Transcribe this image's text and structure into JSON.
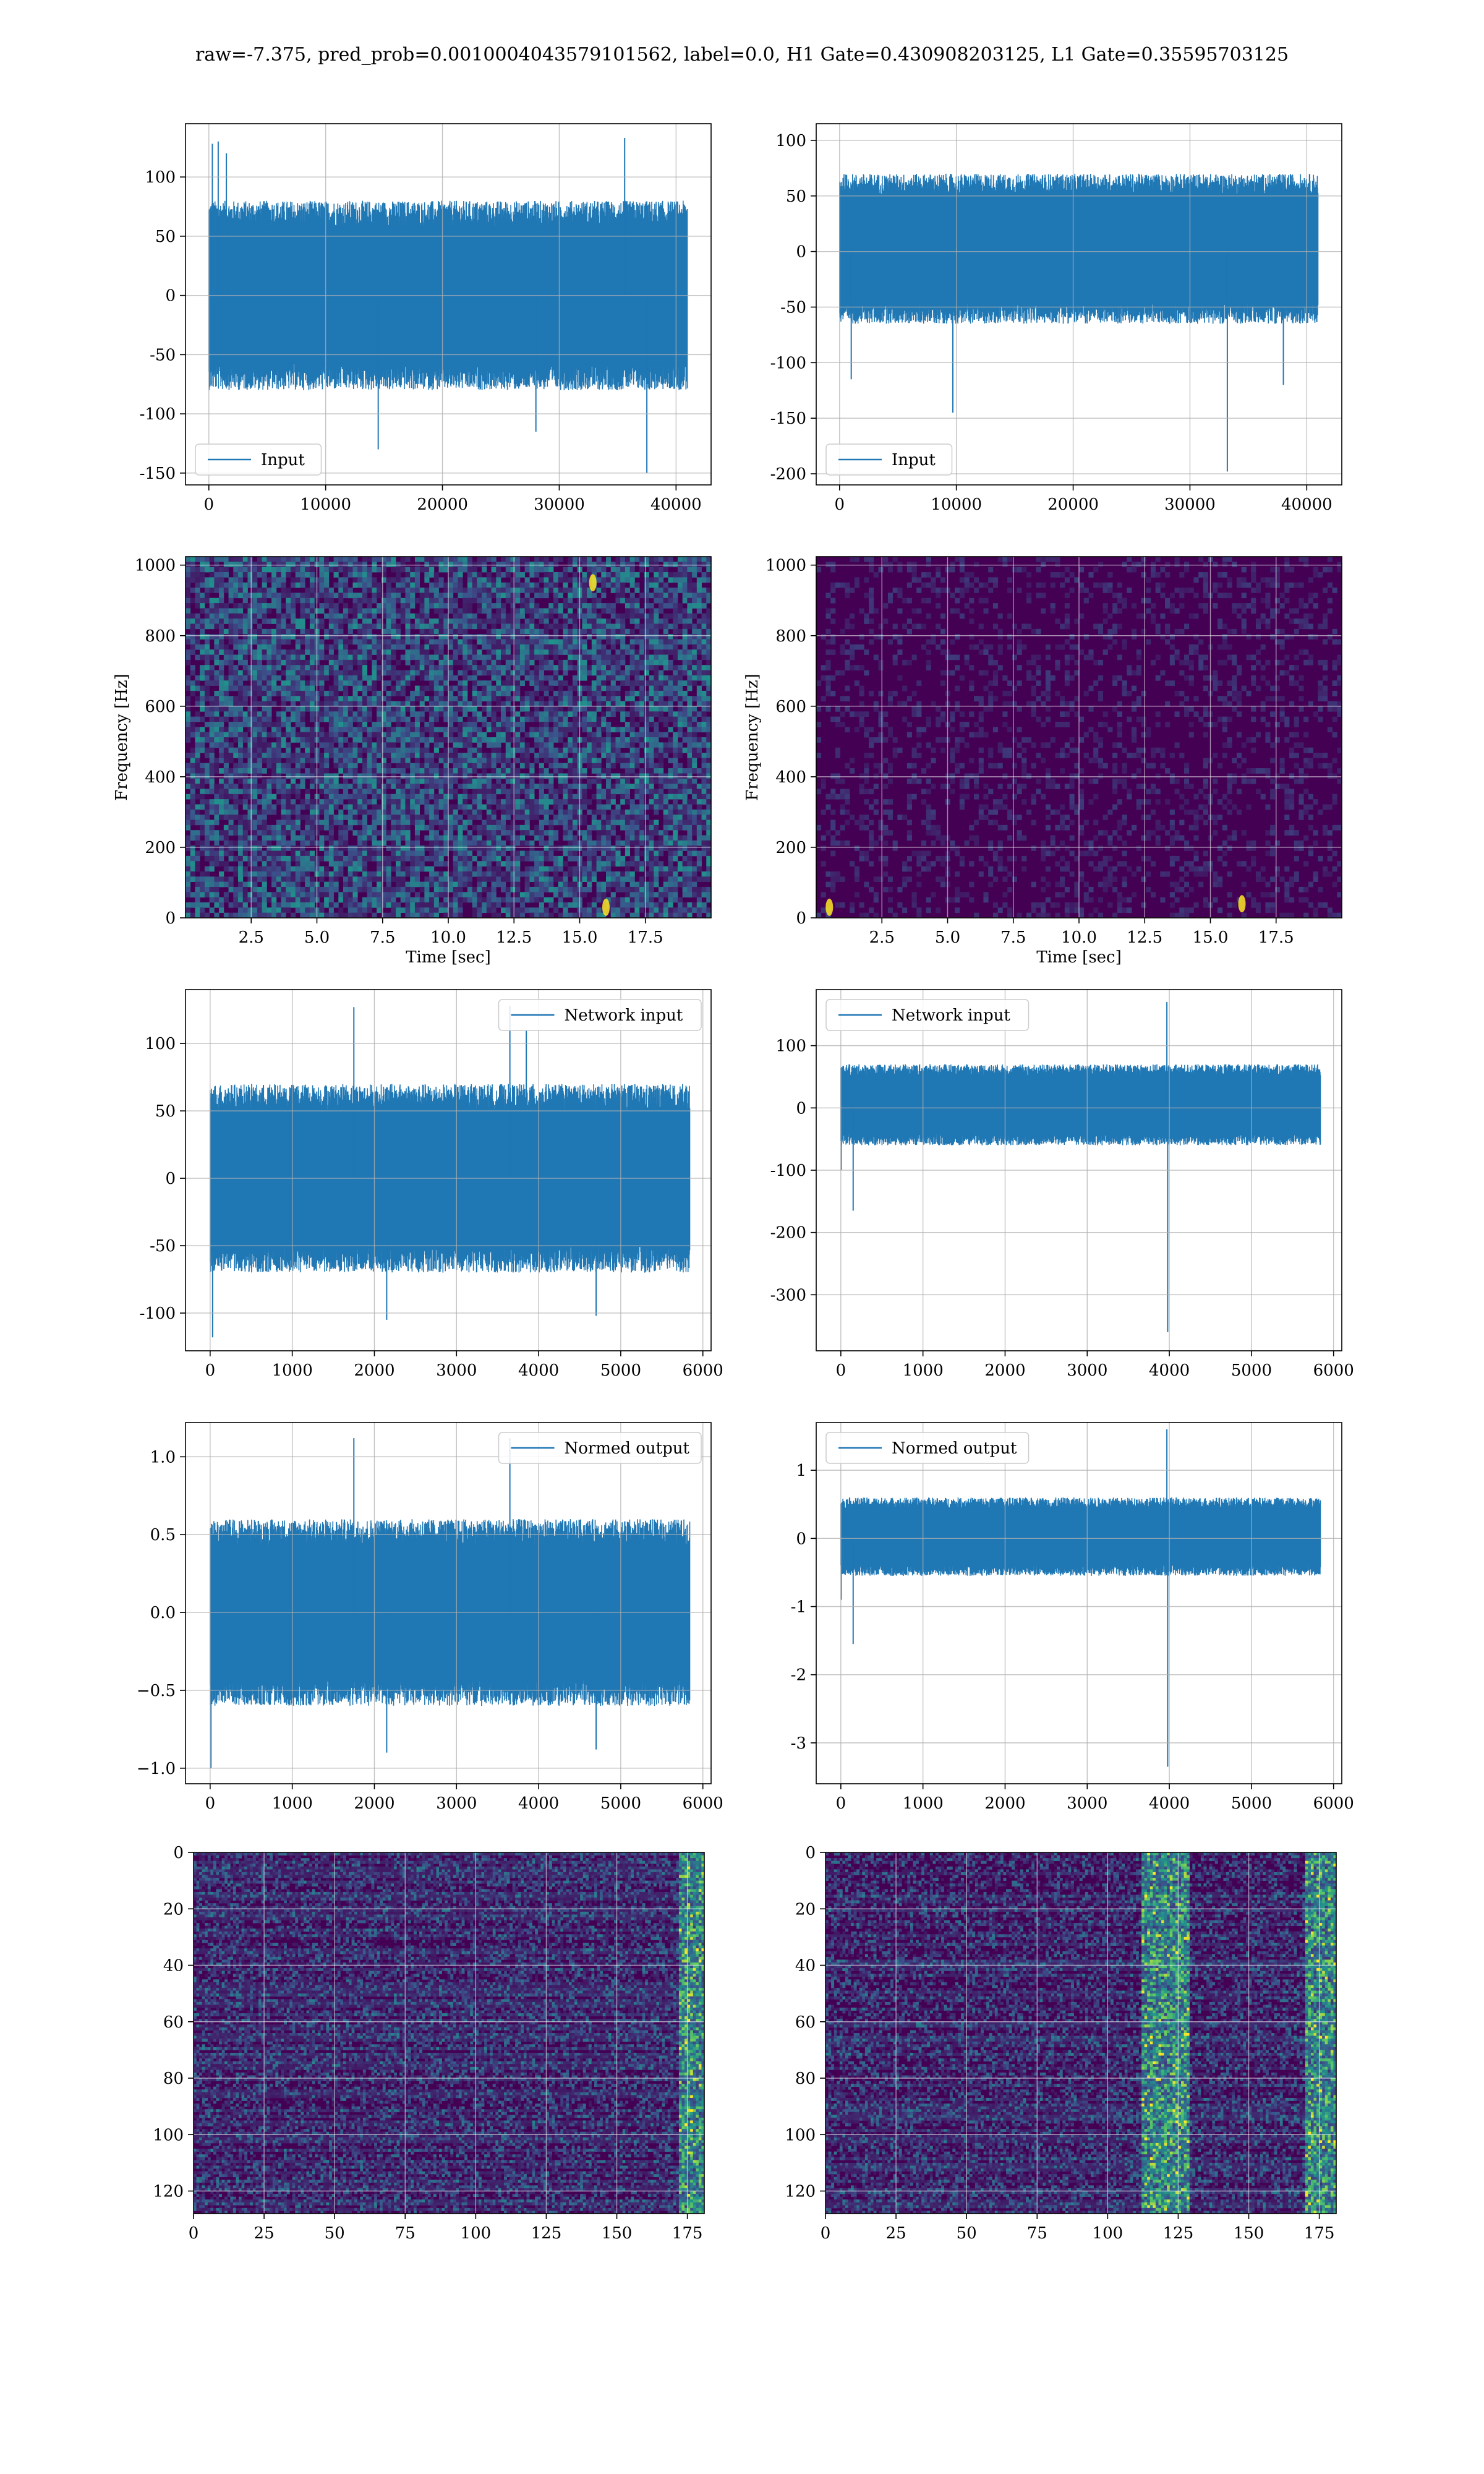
{
  "figure": {
    "suptitle": "raw=-7.375, pred_prob=0.0010004043579101562, label=0.0, H1 Gate=0.430908203125, L1 Gate=0.35595703125"
  },
  "colors": {
    "series": "#1f77b4",
    "grid": "#b0b0b0",
    "viridis_low": "#440154",
    "viridis_high": "#fde725"
  },
  "chart_data": [
    {
      "id": "h1-input",
      "type": "line",
      "legend": "Input",
      "legend_position": "lower left",
      "xlim": [
        -2000,
        43000
      ],
      "ylim": [
        -160,
        145
      ],
      "xticks": [
        0,
        10000,
        20000,
        30000,
        40000
      ],
      "yticks": [
        -150,
        -100,
        -50,
        0,
        50,
        100
      ],
      "n_points": 40960,
      "envelope": [
        -80,
        80
      ],
      "spikes": [
        [
          300,
          128
        ],
        [
          800,
          130
        ],
        [
          1500,
          120
        ],
        [
          14500,
          -130
        ],
        [
          37500,
          -150
        ],
        [
          35600,
          133
        ],
        [
          28000,
          -115
        ]
      ],
      "xlabel": "",
      "ylabel": "",
      "grid": true
    },
    {
      "id": "l1-input",
      "type": "line",
      "legend": "Input",
      "legend_position": "lower left",
      "xlim": [
        -2000,
        43000
      ],
      "ylim": [
        -210,
        115
      ],
      "xticks": [
        0,
        10000,
        20000,
        30000,
        40000
      ],
      "yticks": [
        -200,
        -150,
        -100,
        -50,
        0,
        50,
        100
      ],
      "n_points": 40960,
      "envelope": [
        -65,
        70
      ],
      "spikes": [
        [
          33200,
          -198
        ],
        [
          9700,
          -145
        ],
        [
          1000,
          -115
        ],
        [
          38000,
          -120
        ]
      ],
      "xlabel": "",
      "ylabel": "",
      "grid": true
    },
    {
      "id": "h1-spectrogram",
      "type": "heatmap",
      "xlabel": "Time [sec]",
      "ylabel": "Frequency [Hz]",
      "xlim": [
        0,
        20
      ],
      "ylim": [
        0,
        1024
      ],
      "xticks": [
        2.5,
        5.0,
        7.5,
        10.0,
        12.5,
        15.0,
        17.5
      ],
      "yticks": [
        0,
        200,
        400,
        600,
        800,
        1000
      ],
      "intensity": "bright",
      "features": [
        [
          15.5,
          950
        ],
        [
          16.0,
          30
        ]
      ],
      "grid": true
    },
    {
      "id": "l1-spectrogram",
      "type": "heatmap",
      "xlabel": "Time [sec]",
      "ylabel": "Frequency [Hz]",
      "xlim": [
        0,
        20
      ],
      "ylim": [
        0,
        1024
      ],
      "xticks": [
        2.5,
        5.0,
        7.5,
        10.0,
        12.5,
        15.0,
        17.5
      ],
      "yticks": [
        0,
        200,
        400,
        600,
        800,
        1000
      ],
      "intensity": "dark",
      "features": [
        [
          16.2,
          40
        ],
        [
          0.5,
          30
        ]
      ],
      "grid": true
    },
    {
      "id": "h1-network-input",
      "type": "line",
      "legend": "Network input",
      "legend_position": "upper right",
      "xlim": [
        -300,
        6100
      ],
      "ylim": [
        -128,
        140
      ],
      "xticks": [
        0,
        1000,
        2000,
        3000,
        4000,
        5000,
        6000
      ],
      "yticks": [
        -100,
        -50,
        0,
        50,
        100
      ],
      "n_points": 5840,
      "envelope": [
        -70,
        70
      ],
      "spikes": [
        [
          1750,
          127
        ],
        [
          3650,
          128
        ],
        [
          30,
          -118
        ],
        [
          2150,
          -105
        ],
        [
          4700,
          -102
        ],
        [
          3850,
          110
        ]
      ],
      "xlabel": "",
      "ylabel": "",
      "grid": true
    },
    {
      "id": "l1-network-input",
      "type": "line",
      "legend": "Network input",
      "legend_position": "upper left",
      "xlim": [
        -300,
        6100
      ],
      "ylim": [
        -390,
        190
      ],
      "xticks": [
        0,
        1000,
        2000,
        3000,
        4000,
        5000,
        6000
      ],
      "yticks": [
        -300,
        -200,
        -100,
        0,
        100
      ],
      "n_points": 5840,
      "envelope": [
        -60,
        70
      ],
      "spikes": [
        [
          3980,
          -360
        ],
        [
          3970,
          170
        ],
        [
          150,
          -165
        ],
        [
          5,
          -100
        ]
      ],
      "xlabel": "",
      "ylabel": "",
      "grid": true
    },
    {
      "id": "h1-normed-output",
      "type": "line",
      "legend": "Normed output",
      "legend_position": "upper right",
      "xlim": [
        -300,
        6100
      ],
      "ylim": [
        -1.1,
        1.22
      ],
      "xticks": [
        0,
        1000,
        2000,
        3000,
        4000,
        5000,
        6000
      ],
      "yticks": [
        -1.0,
        -0.5,
        0.0,
        0.5,
        1.0
      ],
      "n_points": 5840,
      "envelope": [
        -0.6,
        0.6
      ],
      "spikes": [
        [
          1750,
          1.12
        ],
        [
          3650,
          1.12
        ],
        [
          10,
          -1.0
        ],
        [
          2150,
          -0.9
        ],
        [
          4700,
          -0.88
        ]
      ],
      "xlabel": "",
      "ylabel": "",
      "grid": true
    },
    {
      "id": "l1-normed-output",
      "type": "line",
      "legend": "Normed output",
      "legend_position": "upper left",
      "xlim": [
        -300,
        6100
      ],
      "ylim": [
        -3.6,
        1.7
      ],
      "xticks": [
        0,
        1000,
        2000,
        3000,
        4000,
        5000,
        6000
      ],
      "yticks": [
        -3,
        -2,
        -1,
        0,
        1
      ],
      "n_points": 5840,
      "envelope": [
        -0.55,
        0.6
      ],
      "spikes": [
        [
          3980,
          -3.35
        ],
        [
          3970,
          1.6
        ],
        [
          150,
          -1.55
        ],
        [
          5,
          -0.9
        ]
      ],
      "xlabel": "",
      "ylabel": "",
      "grid": true
    },
    {
      "id": "h1-feature-map",
      "type": "heatmap",
      "xlim": [
        0,
        181
      ],
      "ylim": [
        128,
        0
      ],
      "xticks": [
        0,
        25,
        50,
        75,
        100,
        125,
        150,
        175
      ],
      "yticks": [
        0,
        20,
        40,
        60,
        80,
        100,
        120
      ],
      "rows": 128,
      "cols": 181,
      "hot_columns": [
        [
          172,
          181
        ]
      ],
      "xlabel": "",
      "ylabel": "",
      "grid": true
    },
    {
      "id": "l1-feature-map",
      "type": "heatmap",
      "xlim": [
        0,
        181
      ],
      "ylim": [
        128,
        0
      ],
      "xticks": [
        0,
        25,
        50,
        75,
        100,
        125,
        150,
        175
      ],
      "yticks": [
        0,
        20,
        40,
        60,
        80,
        100,
        120
      ],
      "rows": 128,
      "cols": 181,
      "hot_columns": [
        [
          112,
          128
        ],
        [
          170,
          181
        ]
      ],
      "xlabel": "",
      "ylabel": "",
      "grid": true
    }
  ]
}
